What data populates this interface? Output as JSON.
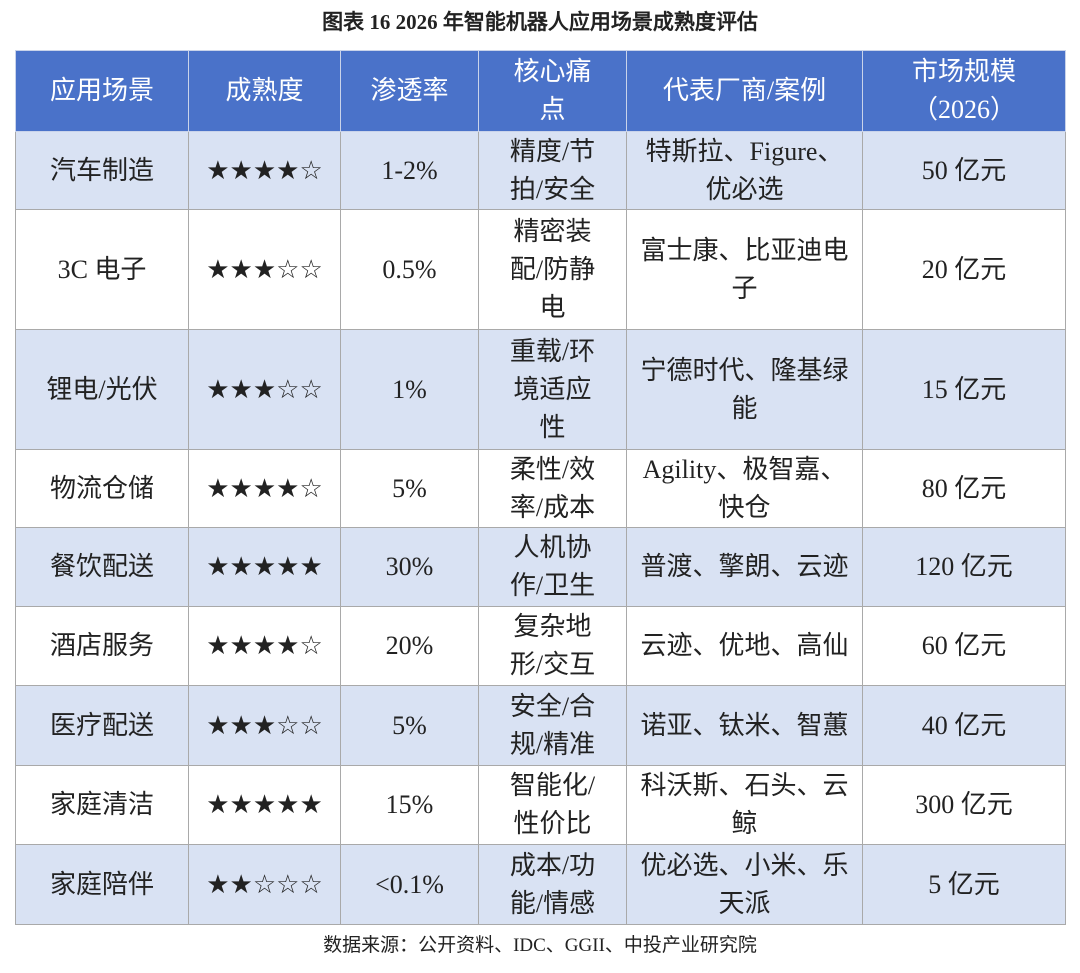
{
  "header": {
    "title": "图表 16   2026 年智能机器人应用场景成熟度评估"
  },
  "table": {
    "columns": [
      "应用场景",
      "成熟度",
      "渗透率",
      "核心痛点",
      "代表厂商/案例",
      "市场规模（2026）"
    ],
    "rows": [
      [
        "汽车制造",
        "★★★★☆",
        "1-2%",
        "精度/节拍/安全",
        "特斯拉、Figure、优必选",
        "50 亿元"
      ],
      [
        "3C 电子",
        "★★★☆☆",
        "0.5%",
        "精密装配/防静电",
        "富士康、比亚迪电子",
        "20 亿元"
      ],
      [
        "锂电/光伏",
        "★★★☆☆",
        "1%",
        "重载/环境适应性",
        "宁德时代、隆基绿能",
        "15 亿元"
      ],
      [
        "物流仓储",
        "★★★★☆",
        "5%",
        "柔性/效率/成本",
        "Agility、极智嘉、快仓",
        "80 亿元"
      ],
      [
        "餐饮配送",
        "★★★★★",
        "30%",
        "人机协作/卫生",
        "普渡、擎朗、云迹",
        "120 亿元"
      ],
      [
        "酒店服务",
        "★★★★☆",
        "20%",
        "复杂地形/交互",
        "云迹、优地、高仙",
        "60 亿元"
      ],
      [
        "医疗配送",
        "★★★☆☆",
        "5%",
        "安全/合规/精准",
        "诺亚、钛米、智蕙",
        "40 亿元"
      ],
      [
        "家庭清洁",
        "★★★★★",
        "15%",
        "智能化/性价比",
        "科沃斯、石头、云鲸",
        "300 亿元"
      ],
      [
        "家庭陪伴",
        "★★☆☆☆",
        "<0.1%",
        "成本/功能/情感",
        "优必选、小米、乐天派",
        "5 亿元"
      ]
    ]
  },
  "footer": {
    "source": "数据来源：公开资料、IDC、GGII、中投产业研究院"
  }
}
